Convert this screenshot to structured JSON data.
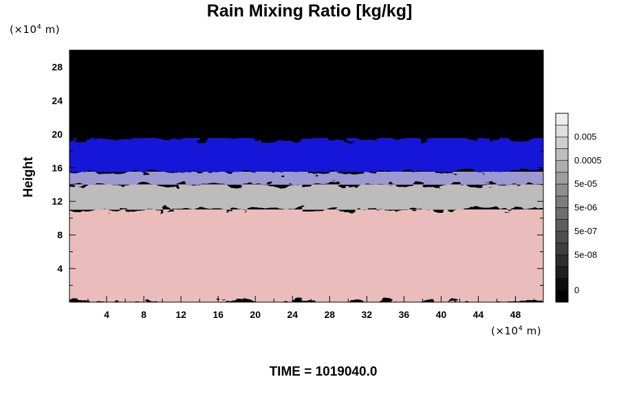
{
  "chart_data": {
    "type": "heatmap",
    "title": "Rain Mixing Ratio [kg/kg]",
    "ylabel": "Height",
    "x_unit": {
      "prefix": "(×10",
      "exp": "4",
      "suffix": " m)"
    },
    "y_unit": {
      "prefix": "(×10",
      "exp": "4",
      "suffix": " m)"
    },
    "x_ticks": [
      "4",
      "8",
      "12",
      "16",
      "20",
      "24",
      "28",
      "32",
      "36",
      "40",
      "44",
      "48"
    ],
    "x_tick_values": [
      4,
      8,
      12,
      16,
      20,
      24,
      28,
      32,
      36,
      40,
      44,
      48
    ],
    "xlim": [
      0,
      51
    ],
    "y_ticks": [
      "4",
      "8",
      "12",
      "16",
      "20",
      "24",
      "28"
    ],
    "y_tick_values": [
      4,
      8,
      12,
      16,
      20,
      24,
      28
    ],
    "ylim": [
      0,
      30
    ],
    "colorbar": {
      "labels": [
        "0.005",
        "0.0005",
        "5e-05",
        "5e-06",
        "5e-07",
        "5e-08",
        "0"
      ],
      "label_levels": [
        2,
        4,
        6,
        8,
        10,
        12,
        15
      ],
      "levels": 16,
      "colors": [
        "#eeeeee",
        "#dedede",
        "#cecece",
        "#bebebe",
        "#aeaeae",
        "#9e9e9e",
        "#8e8e8e",
        "#7e7e7e",
        "#6e6e6e",
        "#5e5e5e",
        "#4e4e4e",
        "#3e3e3e",
        "#2e2e2e",
        "#1e1e1e",
        "#0e0e0e",
        "#000000"
      ]
    },
    "field_bands": [
      {
        "name": "pink",
        "color": "#ebbcbc",
        "from": 0,
        "to": 11
      },
      {
        "name": "gray",
        "color": "#bcbcbc",
        "from": 11,
        "to": 14
      },
      {
        "name": "lavender",
        "color": "#9c98d0",
        "from": 14,
        "to": 15.5
      },
      {
        "name": "blue",
        "color": "#1818d8",
        "from": 15.5,
        "to": 19.5
      },
      {
        "name": "black",
        "color": "#000000",
        "from": 19.5,
        "to": 30
      }
    ],
    "annotation": "TIME = 1019040.0"
  }
}
